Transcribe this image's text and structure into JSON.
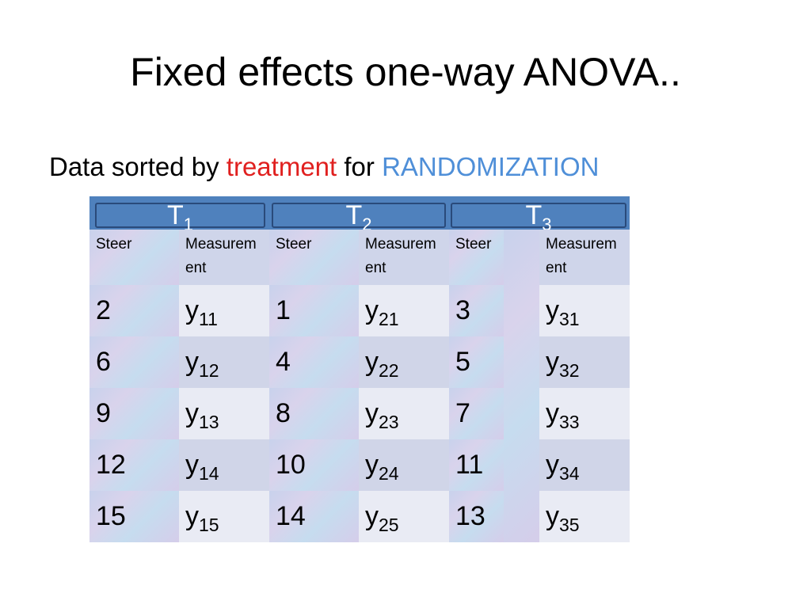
{
  "title": "Fixed effects one-way ANOVA..",
  "subtitle": {
    "parts": [
      "Data sorted by",
      "treatment",
      "for",
      "RANDOMIZATION"
    ]
  },
  "table": {
    "groups": [
      {
        "label": "T",
        "sub": "1",
        "columns": [
          "Steer",
          "Measurement"
        ]
      },
      {
        "label": "T",
        "sub": "2",
        "columns": [
          "Steer",
          "Measurement"
        ]
      },
      {
        "label": "T",
        "sub": "3",
        "columns": [
          "Steer",
          "Measurement"
        ]
      }
    ],
    "rows": [
      [
        [
          2,
          "y",
          "11"
        ],
        [
          1,
          "y",
          "21"
        ],
        [
          3,
          "y",
          "31"
        ]
      ],
      [
        [
          6,
          "y",
          "12"
        ],
        [
          4,
          "y",
          "22"
        ],
        [
          5,
          "y",
          "32"
        ]
      ],
      [
        [
          9,
          "y",
          "13"
        ],
        [
          8,
          "y",
          "23"
        ],
        [
          7,
          "y",
          "33"
        ]
      ],
      [
        [
          12,
          "y",
          "14"
        ],
        [
          10,
          "y",
          "24"
        ],
        [
          11,
          "y",
          "34"
        ]
      ],
      [
        [
          15,
          "y",
          "15"
        ],
        [
          14,
          "y",
          "25"
        ],
        [
          13,
          "y",
          "35"
        ]
      ]
    ]
  }
}
